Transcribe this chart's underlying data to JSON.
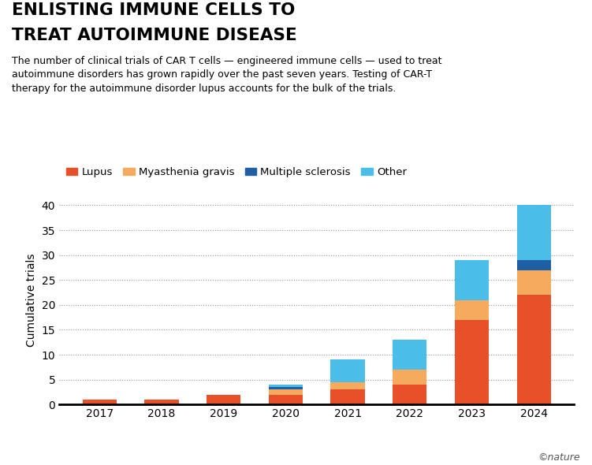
{
  "years": [
    "2017",
    "2018",
    "2019",
    "2020",
    "2021",
    "2022",
    "2023",
    "2024"
  ],
  "lupus": [
    1,
    1,
    2,
    2,
    3,
    4,
    17,
    22
  ],
  "myasthenia": [
    0,
    0,
    0,
    1,
    1.5,
    3,
    4,
    5
  ],
  "ms": [
    0,
    0,
    0,
    0.5,
    0,
    0,
    0,
    2
  ],
  "other": [
    0,
    0,
    0,
    0.5,
    4.5,
    6,
    8,
    11
  ],
  "colors": {
    "lupus": "#E8502A",
    "myasthenia": "#F5AA5E",
    "ms": "#1F5FA6",
    "other": "#4ABDE8"
  },
  "labels": {
    "lupus": "Lupus",
    "myasthenia": "Myasthenia gravis",
    "ms": "Multiple sclerosis",
    "other": "Other"
  },
  "title_line1": "ENLISTING IMMUNE CELLS TO",
  "title_line2": "TREAT AUTOIMMUNE DISEASE",
  "subtitle": "The number of clinical trials of CAR T cells — engineered immune cells — used to treat\nautoimmune disorders has grown rapidly over the past seven years. Testing of CAR-T\ntherapy for the autoimmune disorder lupus accounts for the bulk of the trials.",
  "ylabel": "Cumulative trials",
  "ylim": [
    0,
    42
  ],
  "yticks": [
    0,
    5,
    10,
    15,
    20,
    25,
    30,
    35,
    40
  ],
  "background_color": "#FFFFFF",
  "nature_credit": "©nature"
}
